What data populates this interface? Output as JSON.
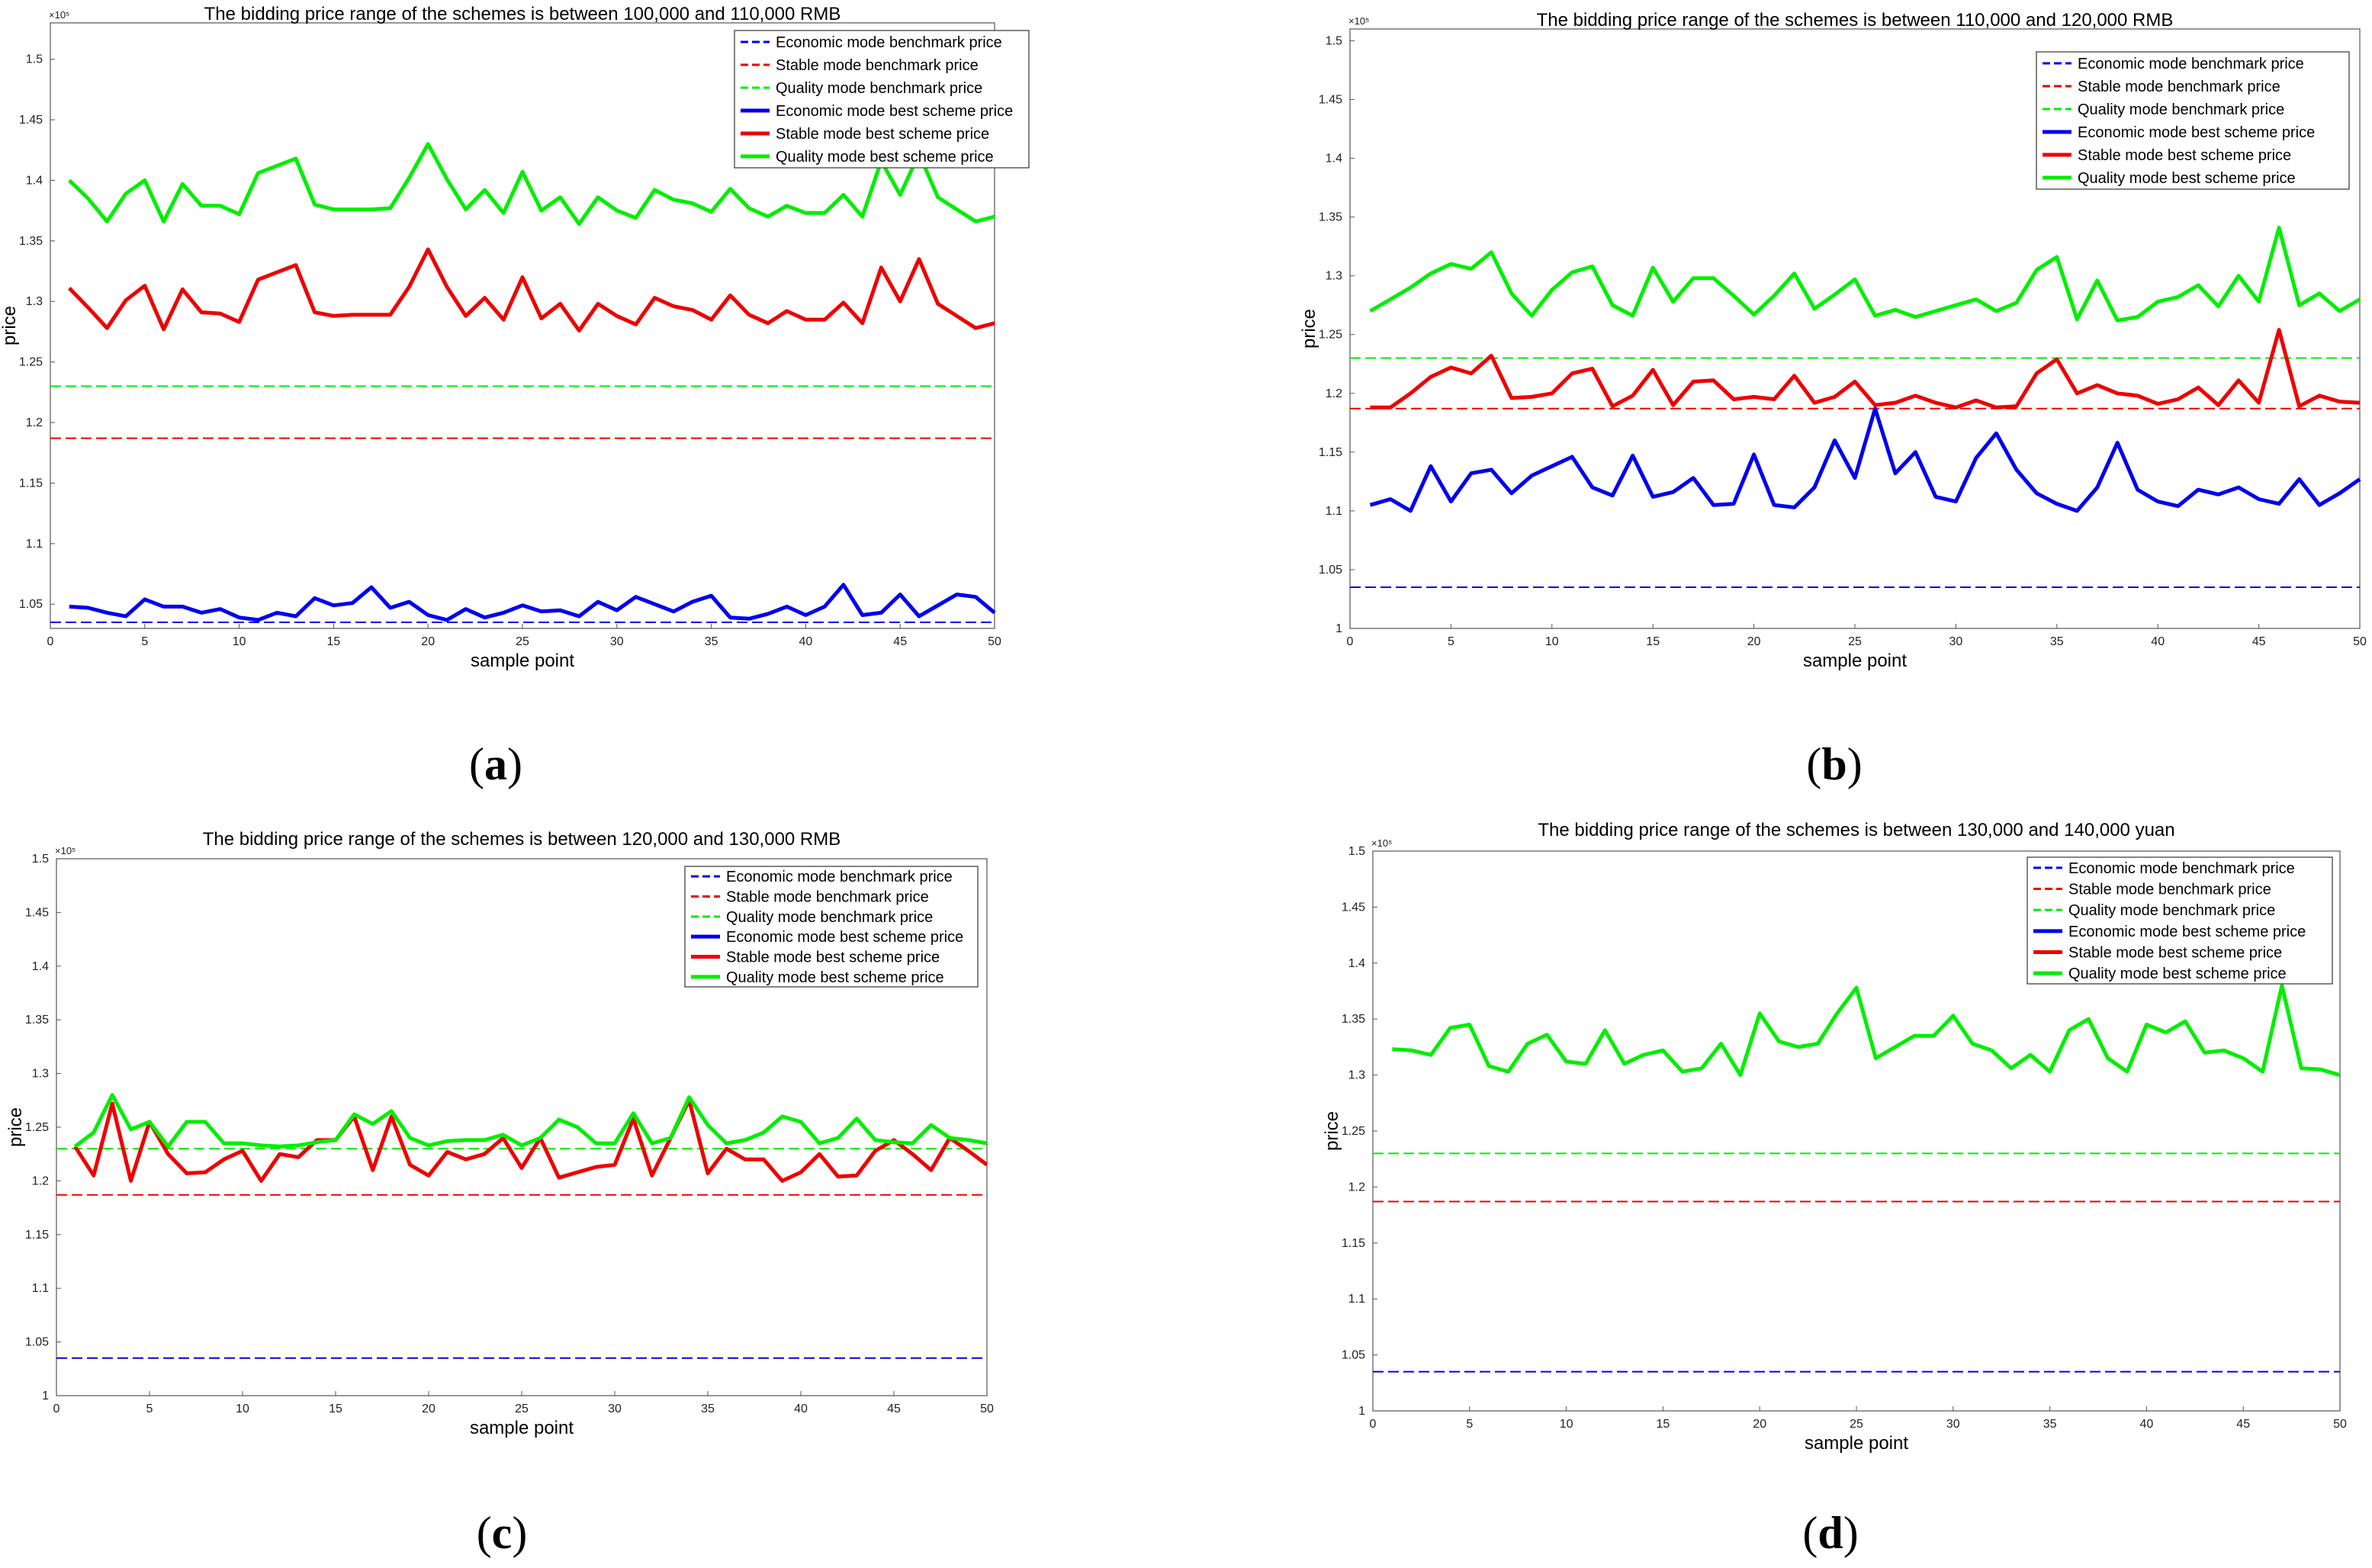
{
  "colors": {
    "economic": "#0000ee",
    "stable": "#ee0000",
    "quality": "#00ee00"
  },
  "chart_data": [
    {
      "type": "line",
      "panel": "a",
      "title": "The bidding price range of the schemes is between 100,000 and 110,000 RMB",
      "xlabel": "sample point",
      "ylabel": "price",
      "exponent": "×10⁵",
      "xlim": [
        0,
        50
      ],
      "ylim": [
        1.03,
        1.53
      ],
      "xticks": [
        0,
        5,
        10,
        15,
        20,
        25,
        30,
        35,
        40,
        45,
        50
      ],
      "yticks": [
        1.05,
        1.1,
        1.15,
        1.2,
        1.25,
        1.3,
        1.35,
        1.4,
        1.45,
        1.5
      ],
      "legend": [
        "Economic mode benchmark price",
        "Stable mode benchmark price",
        "Quality mode benchmark price",
        "Economic mode best scheme price",
        "Stable mode best scheme price",
        "Quality mode best scheme price"
      ],
      "benchmarks": {
        "economic": 1.035,
        "stable": 1.187,
        "quality": 1.23
      },
      "series": [
        {
          "name": "Economic mode best scheme price",
          "values": [
            1.048,
            1.047,
            1.043,
            1.04,
            1.054,
            1.048,
            1.048,
            1.043,
            1.046,
            1.039,
            1.037,
            1.043,
            1.04,
            1.055,
            1.049,
            1.051,
            1.064,
            1.047,
            1.052,
            1.041,
            1.037,
            1.046,
            1.039,
            1.043,
            1.049,
            1.044,
            1.045,
            1.04,
            1.052,
            1.045,
            1.056,
            1.05,
            1.044,
            1.052,
            1.057,
            1.039,
            1.038,
            1.042,
            1.048,
            1.041,
            1.048,
            1.066,
            1.041,
            1.043,
            1.058,
            1.04,
            1.049,
            1.058,
            1.056,
            1.043
          ]
        },
        {
          "name": "Stable mode best scheme price",
          "values": [
            1.311,
            1.295,
            1.278,
            1.301,
            1.313,
            1.277,
            1.31,
            1.291,
            1.29,
            1.283,
            1.318,
            1.324,
            1.33,
            1.291,
            1.288,
            1.289,
            1.289,
            1.289,
            1.312,
            1.343,
            1.312,
            1.288,
            1.303,
            1.285,
            1.32,
            1.286,
            1.298,
            1.276,
            1.298,
            1.288,
            1.281,
            1.303,
            1.296,
            1.293,
            1.285,
            1.305,
            1.289,
            1.282,
            1.292,
            1.285,
            1.285,
            1.299,
            1.282,
            1.328,
            1.3,
            1.335,
            1.298,
            1.288,
            1.278,
            1.282
          ]
        },
        {
          "name": "Quality mode best scheme price",
          "values": [
            1.4,
            1.385,
            1.366,
            1.389,
            1.4,
            1.366,
            1.397,
            1.379,
            1.379,
            1.372,
            1.406,
            1.412,
            1.418,
            1.38,
            1.376,
            1.376,
            1.376,
            1.377,
            1.402,
            1.43,
            1.401,
            1.376,
            1.392,
            1.373,
            1.407,
            1.375,
            1.386,
            1.364,
            1.386,
            1.375,
            1.369,
            1.392,
            1.384,
            1.381,
            1.374,
            1.393,
            1.377,
            1.37,
            1.379,
            1.373,
            1.373,
            1.388,
            1.37,
            1.416,
            1.388,
            1.422,
            1.386,
            1.376,
            1.366,
            1.37
          ]
        }
      ]
    },
    {
      "type": "line",
      "panel": "b",
      "title": "The bidding price range of the schemes is between 110,000 and 120,000 RMB",
      "xlabel": "sample point",
      "ylabel": "price",
      "exponent": "×10⁵",
      "xlim": [
        0,
        50
      ],
      "ylim": [
        1.0,
        1.51
      ],
      "xticks": [
        0,
        5,
        10,
        15,
        20,
        25,
        30,
        35,
        40,
        45,
        50
      ],
      "yticks": [
        1.0,
        1.05,
        1.1,
        1.15,
        1.2,
        1.25,
        1.3,
        1.35,
        1.4,
        1.45,
        1.5
      ],
      "legend": [
        "Economic mode benchmark price",
        "Stable mode benchmark price",
        "Quality mode benchmark price",
        "Economic mode best scheme price",
        "Stable mode best scheme price",
        "Quality mode best scheme price"
      ],
      "benchmarks": {
        "economic": 1.035,
        "stable": 1.187,
        "quality": 1.23
      },
      "series": [
        {
          "name": "Economic mode best scheme price",
          "values": [
            1.105,
            1.11,
            1.1,
            1.138,
            1.108,
            1.132,
            1.135,
            1.115,
            1.13,
            1.138,
            1.146,
            1.12,
            1.113,
            1.147,
            1.112,
            1.116,
            1.128,
            1.105,
            1.106,
            1.148,
            1.105,
            1.103,
            1.12,
            1.16,
            1.128,
            1.187,
            1.132,
            1.15,
            1.112,
            1.108,
            1.145,
            1.166,
            1.135,
            1.115,
            1.106,
            1.1,
            1.12,
            1.158,
            1.118,
            1.108,
            1.104,
            1.118,
            1.114,
            1.12,
            1.11,
            1.106,
            1.127,
            1.105,
            1.115,
            1.127
          ]
        },
        {
          "name": "Stable mode best scheme price",
          "values": [
            1.188,
            1.188,
            1.2,
            1.214,
            1.222,
            1.217,
            1.232,
            1.196,
            1.197,
            1.2,
            1.217,
            1.221,
            1.189,
            1.198,
            1.22,
            1.19,
            1.21,
            1.211,
            1.195,
            1.197,
            1.195,
            1.215,
            1.192,
            1.197,
            1.21,
            1.19,
            1.192,
            1.198,
            1.192,
            1.188,
            1.194,
            1.188,
            1.189,
            1.217,
            1.229,
            1.2,
            1.207,
            1.2,
            1.198,
            1.191,
            1.195,
            1.205,
            1.19,
            1.211,
            1.192,
            1.254,
            1.189,
            1.198,
            1.193,
            1.192
          ]
        },
        {
          "name": "Quality mode best scheme price",
          "values": [
            1.27,
            1.28,
            1.29,
            1.302,
            1.31,
            1.306,
            1.32,
            1.285,
            1.266,
            1.288,
            1.303,
            1.308,
            1.275,
            1.266,
            1.307,
            1.278,
            1.298,
            1.298,
            1.283,
            1.267,
            1.283,
            1.302,
            1.272,
            1.284,
            1.297,
            1.266,
            1.271,
            1.265,
            1.27,
            1.275,
            1.28,
            1.27,
            1.277,
            1.305,
            1.316,
            1.263,
            1.296,
            1.262,
            1.265,
            1.278,
            1.282,
            1.292,
            1.274,
            1.3,
            1.278,
            1.341,
            1.275,
            1.285,
            1.27,
            1.28
          ]
        }
      ]
    },
    {
      "type": "line",
      "panel": "c",
      "title": "The bidding price range of the schemes is between 120,000 and 130,000 RMB",
      "xlabel": "sample point",
      "ylabel": "price",
      "exponent": "×10⁵",
      "xlim": [
        0,
        50
      ],
      "ylim": [
        1.0,
        1.5
      ],
      "xticks": [
        0,
        5,
        10,
        15,
        20,
        25,
        30,
        35,
        40,
        45,
        50
      ],
      "yticks": [
        1.0,
        1.05,
        1.1,
        1.15,
        1.2,
        1.25,
        1.3,
        1.35,
        1.4,
        1.45,
        1.5
      ],
      "legend": [
        "Economic mode benchmark price",
        "Stable mode benchmark price",
        "Quality mode benchmark price",
        "Economic mode best scheme price",
        "Stable mode best scheme price",
        "Quality mode best scheme price"
      ],
      "benchmarks": {
        "economic": 1.035,
        "stable": 1.187,
        "quality": 1.23
      },
      "series": [
        {
          "name": "Stable mode best scheme price",
          "values": [
            1.232,
            1.205,
            1.272,
            1.2,
            1.255,
            1.225,
            1.207,
            1.208,
            1.22,
            1.228,
            1.2,
            1.225,
            1.222,
            1.238,
            1.238,
            1.26,
            1.21,
            1.26,
            1.215,
            1.205,
            1.227,
            1.22,
            1.225,
            1.24,
            1.212,
            1.24,
            1.203,
            1.208,
            1.213,
            1.215,
            1.258,
            1.205,
            1.24,
            1.275,
            1.207,
            1.23,
            1.22,
            1.22,
            1.2,
            1.208,
            1.225,
            1.204,
            1.205,
            1.228,
            1.238,
            1.225,
            1.21,
            1.24,
            1.228,
            1.215
          ]
        },
        {
          "name": "Quality mode best scheme price",
          "values": [
            1.232,
            1.245,
            1.28,
            1.248,
            1.255,
            1.232,
            1.255,
            1.255,
            1.235,
            1.235,
            1.233,
            1.232,
            1.233,
            1.236,
            1.238,
            1.262,
            1.253,
            1.265,
            1.24,
            1.233,
            1.237,
            1.238,
            1.238,
            1.243,
            1.233,
            1.24,
            1.257,
            1.25,
            1.235,
            1.235,
            1.263,
            1.235,
            1.24,
            1.278,
            1.252,
            1.235,
            1.238,
            1.245,
            1.26,
            1.255,
            1.235,
            1.24,
            1.258,
            1.238,
            1.236,
            1.235,
            1.252,
            1.24,
            1.238,
            1.235
          ]
        }
      ]
    },
    {
      "type": "line",
      "panel": "d",
      "title": "The bidding price range of the schemes is between 130,000 and 140,000 yuan",
      "xlabel": "sample point",
      "ylabel": "price",
      "exponent": "×10⁵",
      "xlim": [
        0,
        50
      ],
      "ylim": [
        1.0,
        1.5
      ],
      "xticks": [
        0,
        5,
        10,
        15,
        20,
        25,
        30,
        35,
        40,
        45,
        50
      ],
      "yticks": [
        1.0,
        1.05,
        1.1,
        1.15,
        1.2,
        1.25,
        1.3,
        1.35,
        1.4,
        1.45,
        1.5
      ],
      "legend": [
        "Economic mode benchmark price",
        "Stable mode benchmark price",
        "Quality mode benchmark price",
        "Economic mode best scheme price",
        "Stable mode best scheme price",
        "Quality mode best scheme price"
      ],
      "benchmarks": {
        "economic": 1.035,
        "stable": 1.187,
        "quality": 1.23
      },
      "series": [
        {
          "name": "Quality mode best scheme price",
          "values": [
            1.323,
            1.322,
            1.318,
            1.342,
            1.345,
            1.308,
            1.303,
            1.328,
            1.336,
            1.312,
            1.31,
            1.34,
            1.31,
            1.318,
            1.322,
            1.303,
            1.306,
            1.328,
            1.3,
            1.355,
            1.33,
            1.325,
            1.328,
            1.355,
            1.378,
            1.315,
            1.325,
            1.335,
            1.335,
            1.353,
            1.328,
            1.322,
            1.306,
            1.318,
            1.303,
            1.34,
            1.35,
            1.315,
            1.303,
            1.345,
            1.338,
            1.348,
            1.32,
            1.322,
            1.315,
            1.303,
            1.38,
            1.306,
            1.305,
            1.3
          ]
        }
      ]
    }
  ]
}
